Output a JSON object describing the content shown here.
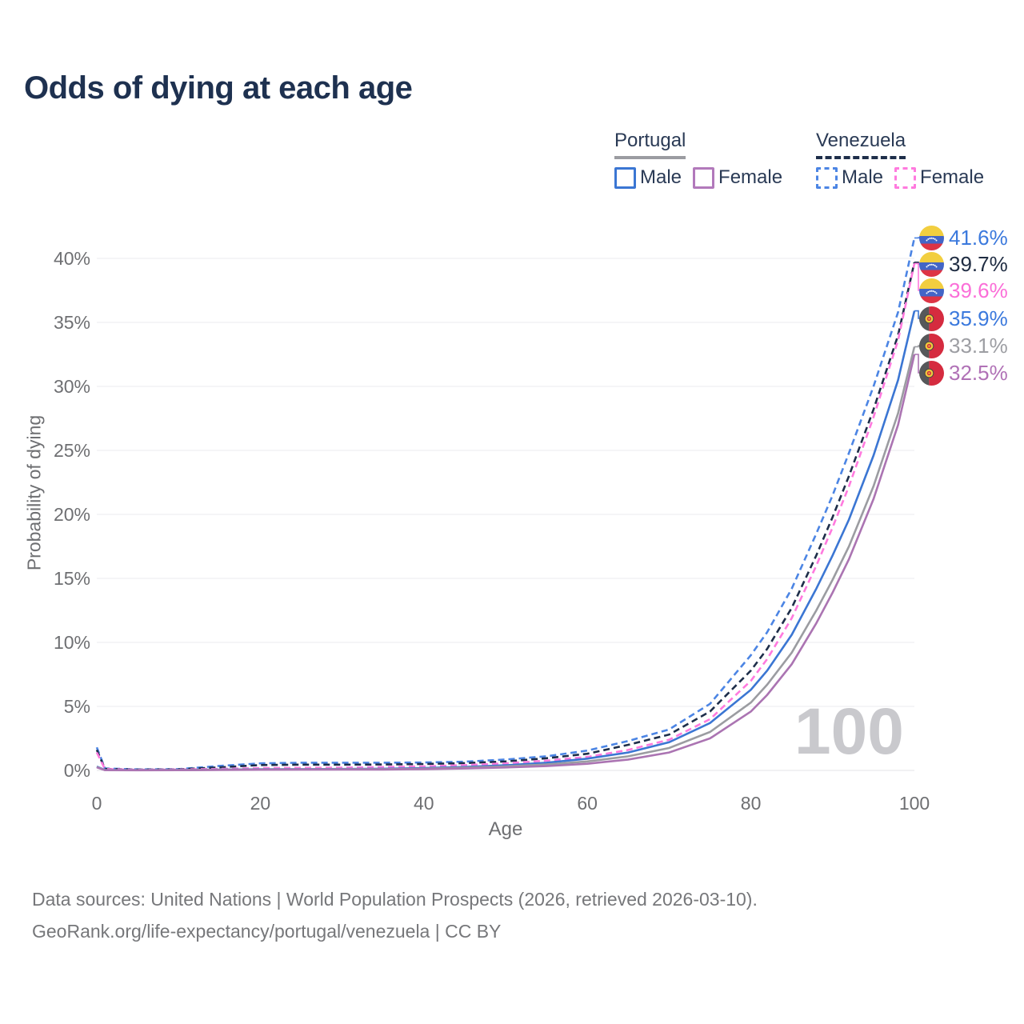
{
  "header": {
    "title": "Odds of dying at each age"
  },
  "legend": {
    "portugal": {
      "country": "Portugal",
      "male_label": "Male",
      "female_label": "Female",
      "line_style": "solid",
      "underline_color": "#9b9ca1"
    },
    "venezuela": {
      "country": "Venezuela",
      "male_label": "Male",
      "female_label": "Female",
      "line_style": "dashed",
      "underline_color": "#1e2e4a"
    }
  },
  "axes": {
    "x": {
      "title": "Age",
      "ticks": [
        0,
        20,
        40,
        60,
        80,
        100
      ],
      "range": [
        0,
        100
      ]
    },
    "y": {
      "title": "Probability of dying",
      "ticks": [
        "0%",
        "5%",
        "10%",
        "15%",
        "20%",
        "25%",
        "30%",
        "35%",
        "40%"
      ],
      "tick_values": [
        0,
        5,
        10,
        15,
        20,
        25,
        30,
        35,
        40
      ],
      "range": [
        0,
        40
      ],
      "grid": true
    }
  },
  "watermark": "100",
  "footer": {
    "line1": "Data sources: United Nations | World Population Prospects (2026, retrieved 2026-03-10).",
    "line2": "GeoRank.org/life-expectancy/portugal/venezuela | CC BY"
  },
  "colors": {
    "male_blue": "#3e7cd6",
    "venezuela_all_navy": "#1e2e4a",
    "venezuela_female_pink": "#ff7ade",
    "portugal_all_gray": "#9b9ca1",
    "portugal_female_mauve": "#ab74b2",
    "title_navy": "#1e3150",
    "axis_gray": "#6e6f72",
    "gridline": "#ebebef",
    "watermark_gray": "#c9c9cd"
  },
  "chart_data": {
    "type": "line",
    "title": "Odds of dying at each age",
    "xlabel": "Age",
    "ylabel": "Probability of dying",
    "xlim": [
      0,
      100
    ],
    "ylim_percent": [
      0,
      40
    ],
    "legend_position": "top-right",
    "grid": "horizontal",
    "ages": [
      0,
      1,
      5,
      10,
      15,
      20,
      25,
      30,
      35,
      40,
      45,
      50,
      55,
      60,
      65,
      70,
      75,
      80,
      82,
      85,
      88,
      90,
      92,
      95,
      98,
      100
    ],
    "series": [
      {
        "name": "Venezuela Male",
        "country": "Venezuela",
        "sex": "male",
        "dashed": true,
        "color": "#4c85e4",
        "end_label": "41.6%",
        "label_color_class": "c-blue",
        "values": [
          1.8,
          0.15,
          0.08,
          0.1,
          0.35,
          0.55,
          0.6,
          0.6,
          0.6,
          0.62,
          0.68,
          0.85,
          1.1,
          1.55,
          2.3,
          3.2,
          5.2,
          9.0,
          10.8,
          14.2,
          18.5,
          21.5,
          24.8,
          30.0,
          35.8,
          41.6
        ]
      },
      {
        "name": "Venezuela Both sexes",
        "country": "Venezuela",
        "sex": "all",
        "dashed": true,
        "color": "#1e2e4a",
        "end_label": "39.7%",
        "label_color_class": "c-navy",
        "values": [
          1.6,
          0.12,
          0.06,
          0.08,
          0.24,
          0.42,
          0.45,
          0.45,
          0.46,
          0.5,
          0.57,
          0.7,
          0.95,
          1.3,
          2.0,
          2.8,
          4.6,
          7.8,
          9.5,
          12.7,
          16.8,
          19.8,
          23.0,
          28.2,
          34.0,
          39.7
        ]
      },
      {
        "name": "Venezuela Female",
        "country": "Venezuela",
        "sex": "female",
        "dashed": true,
        "color": "#ff7ade",
        "end_label": "39.6%",
        "label_color_class": "c-pink",
        "values": [
          1.4,
          0.1,
          0.05,
          0.07,
          0.12,
          0.18,
          0.2,
          0.22,
          0.26,
          0.31,
          0.41,
          0.55,
          0.76,
          1.05,
          1.6,
          2.4,
          4.0,
          7.0,
          8.7,
          11.9,
          16.0,
          19.0,
          22.2,
          27.6,
          33.6,
          39.6
        ]
      },
      {
        "name": "Portugal Male",
        "country": "Portugal",
        "sex": "male",
        "dashed": false,
        "color": "#3b76d3",
        "end_label": "35.9%",
        "label_color_class": "c-blue",
        "values": [
          0.3,
          0.03,
          0.02,
          0.03,
          0.06,
          0.09,
          0.1,
          0.11,
          0.13,
          0.18,
          0.27,
          0.4,
          0.6,
          0.92,
          1.4,
          2.2,
          3.7,
          6.3,
          7.8,
          10.6,
          14.2,
          16.8,
          19.6,
          24.6,
          30.5,
          35.9
        ]
      },
      {
        "name": "Portugal Both sexes",
        "country": "Portugal",
        "sex": "all",
        "dashed": false,
        "color": "#9b9ca1",
        "end_label": "33.1%",
        "label_color_class": "c-gray",
        "values": [
          0.27,
          0.025,
          0.018,
          0.025,
          0.05,
          0.07,
          0.08,
          0.09,
          0.1,
          0.14,
          0.21,
          0.31,
          0.46,
          0.7,
          1.1,
          1.75,
          3.0,
          5.3,
          6.7,
          9.2,
          12.5,
          14.9,
          17.5,
          22.2,
          27.9,
          33.1
        ]
      },
      {
        "name": "Portugal Female",
        "country": "Portugal",
        "sex": "female",
        "dashed": false,
        "color": "#ab74b2",
        "end_label": "32.5%",
        "label_color_class": "c-mauve",
        "values": [
          0.24,
          0.02,
          0.015,
          0.02,
          0.035,
          0.05,
          0.055,
          0.06,
          0.07,
          0.1,
          0.15,
          0.23,
          0.34,
          0.52,
          0.85,
          1.4,
          2.5,
          4.6,
          5.9,
          8.3,
          11.5,
          13.9,
          16.5,
          21.2,
          27.0,
          32.5
        ]
      }
    ],
    "end_values_percent": [
      41.6,
      39.7,
      39.6,
      35.9,
      33.1,
      32.5
    ]
  }
}
